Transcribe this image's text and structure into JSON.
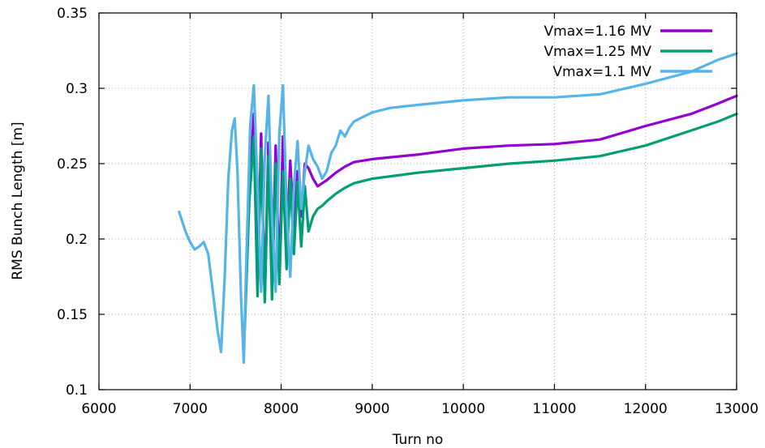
{
  "chart_data": {
    "type": "line",
    "title": "",
    "xlabel": "Turn no",
    "ylabel": "RMS Bunch Length [m]",
    "xlim": [
      6000,
      13000
    ],
    "ylim": [
      0.1,
      0.35
    ],
    "grid": true,
    "legend_position": "top-right",
    "x_ticks": [
      6000,
      7000,
      8000,
      9000,
      10000,
      11000,
      12000,
      13000
    ],
    "x_tick_labels": [
      "6000",
      "7000",
      "8000",
      "9000",
      "10000",
      "11000",
      "12000",
      "13000"
    ],
    "y_ticks": [
      0.1,
      0.15,
      0.2,
      0.25,
      0.3,
      0.35
    ],
    "y_tick_labels": [
      "0.1",
      "0.15",
      "0.2",
      "0.25",
      "0.3",
      "0.35"
    ],
    "series": [
      {
        "name": "Vmax=1.16 MV",
        "color": "#9400d3",
        "x": [
          7650,
          7700,
          7740,
          7780,
          7820,
          7860,
          7900,
          7940,
          7980,
          8020,
          8060,
          8100,
          8140,
          8180,
          8220,
          8260,
          8300,
          8350,
          8400,
          8450,
          8500,
          8600,
          8700,
          8800,
          9000,
          9500,
          10000,
          10500,
          11000,
          11500,
          12000,
          12500,
          12800,
          13000
        ],
        "y": [
          0.235,
          0.283,
          0.175,
          0.27,
          0.162,
          0.264,
          0.168,
          0.262,
          0.175,
          0.268,
          0.195,
          0.252,
          0.205,
          0.245,
          0.215,
          0.25,
          0.247,
          0.24,
          0.235,
          0.237,
          0.239,
          0.244,
          0.248,
          0.251,
          0.253,
          0.256,
          0.26,
          0.262,
          0.263,
          0.266,
          0.275,
          0.283,
          0.29,
          0.295
        ]
      },
      {
        "name": "Vmax=1.25 MV",
        "color": "#009e73",
        "x": [
          7600,
          7650,
          7700,
          7740,
          7780,
          7820,
          7860,
          7900,
          7940,
          7980,
          8020,
          8060,
          8100,
          8140,
          8180,
          8220,
          8260,
          8300,
          8350,
          8400,
          8450,
          8500,
          8600,
          8700,
          8800,
          9000,
          9500,
          10000,
          10500,
          11000,
          11500,
          12000,
          12500,
          12800,
          13000
        ],
        "y": [
          0.14,
          0.225,
          0.268,
          0.162,
          0.26,
          0.158,
          0.255,
          0.16,
          0.25,
          0.17,
          0.245,
          0.18,
          0.24,
          0.19,
          0.238,
          0.195,
          0.235,
          0.205,
          0.215,
          0.22,
          0.222,
          0.225,
          0.23,
          0.234,
          0.237,
          0.24,
          0.244,
          0.247,
          0.25,
          0.252,
          0.255,
          0.262,
          0.272,
          0.278,
          0.283
        ]
      },
      {
        "name": "Vmax=1.1 MV",
        "color": "#56b4e9",
        "x": [
          6880,
          6950,
          7000,
          7050,
          7100,
          7150,
          7200,
          7250,
          7300,
          7340,
          7380,
          7420,
          7460,
          7490,
          7520,
          7560,
          7590,
          7620,
          7660,
          7700,
          7740,
          7780,
          7820,
          7860,
          7900,
          7940,
          7980,
          8020,
          8060,
          8100,
          8140,
          8180,
          8220,
          8260,
          8300,
          8350,
          8400,
          8450,
          8500,
          8550,
          8600,
          8650,
          8700,
          8750,
          8800,
          8900,
          9000,
          9200,
          9500,
          10000,
          10500,
          11000,
          11500,
          12000,
          12500,
          12800,
          13000
        ],
        "y": [
          0.218,
          0.205,
          0.198,
          0.193,
          0.195,
          0.198,
          0.19,
          0.165,
          0.14,
          0.125,
          0.175,
          0.24,
          0.272,
          0.28,
          0.245,
          0.16,
          0.118,
          0.19,
          0.275,
          0.302,
          0.235,
          0.165,
          0.255,
          0.295,
          0.215,
          0.165,
          0.27,
          0.302,
          0.22,
          0.175,
          0.235,
          0.265,
          0.22,
          0.245,
          0.262,
          0.253,
          0.248,
          0.24,
          0.245,
          0.257,
          0.262,
          0.272,
          0.268,
          0.274,
          0.278,
          0.281,
          0.284,
          0.287,
          0.289,
          0.292,
          0.294,
          0.294,
          0.296,
          0.303,
          0.311,
          0.319,
          0.323
        ]
      }
    ]
  }
}
